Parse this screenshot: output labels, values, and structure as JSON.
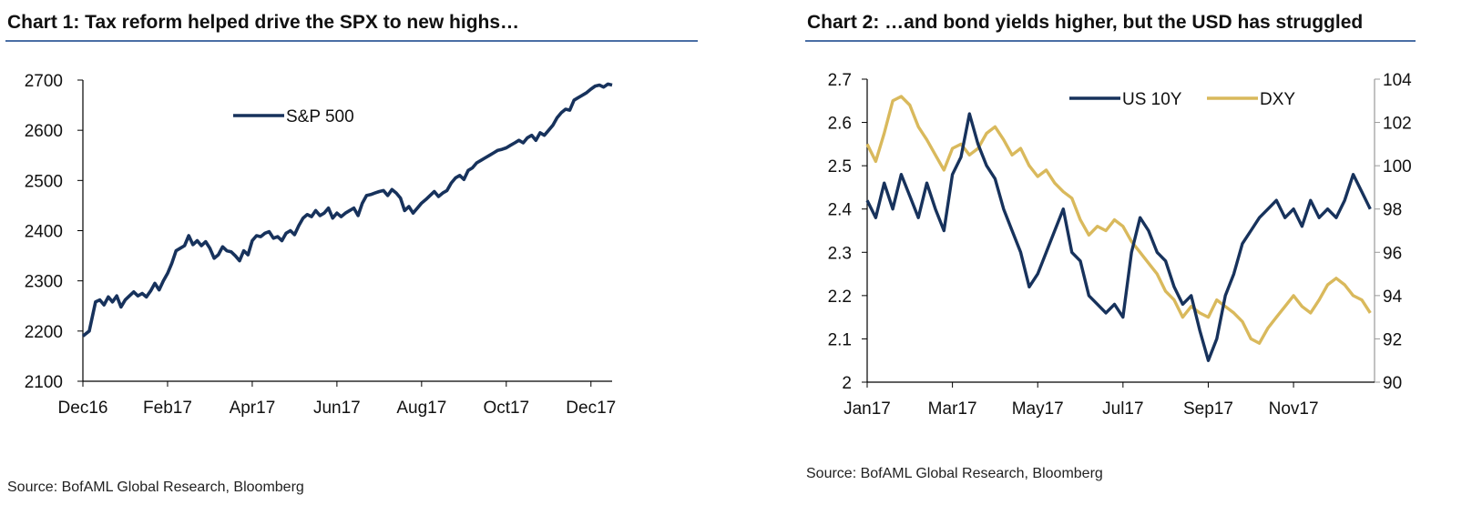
{
  "colors": {
    "navy": "#17325c",
    "gold": "#d9b95c",
    "rule": "#4a6fa5"
  },
  "charts": [
    {
      "title": "Chart 1: Tax reform helped drive the SPX to new highs…",
      "source": "Source: BofAML Global Research, Bloomberg"
    },
    {
      "title": "Chart 2: …and bond yields higher, but the USD has struggled",
      "source": "Source: BofAML Global Research, Bloomberg"
    }
  ],
  "chart_data": [
    {
      "type": "line",
      "title": "Chart 1: Tax reform helped drive the SPX to new highs…",
      "x_ticks": [
        "Dec16",
        "Feb17",
        "Apr17",
        "Jun17",
        "Aug17",
        "Oct17",
        "Dec17"
      ],
      "x_range": [
        0,
        12.5
      ],
      "ylim": [
        2100,
        2700
      ],
      "y_ticks": [
        2100,
        2200,
        2300,
        2400,
        2500,
        2600,
        2700
      ],
      "legend_position": "top-left",
      "series": [
        {
          "name": "S&P 500",
          "color": "#17325c",
          "x": [
            0,
            0.15,
            0.3,
            0.4,
            0.5,
            0.6,
            0.7,
            0.8,
            0.9,
            1.0,
            1.1,
            1.2,
            1.3,
            1.4,
            1.5,
            1.6,
            1.7,
            1.8,
            1.9,
            2.0,
            2.1,
            2.2,
            2.3,
            2.4,
            2.5,
            2.6,
            2.7,
            2.8,
            2.9,
            3.0,
            3.1,
            3.2,
            3.3,
            3.4,
            3.5,
            3.6,
            3.7,
            3.8,
            3.9,
            4.0,
            4.1,
            4.2,
            4.3,
            4.4,
            4.5,
            4.6,
            4.7,
            4.8,
            4.9,
            5.0,
            5.1,
            5.2,
            5.3,
            5.4,
            5.5,
            5.6,
            5.7,
            5.8,
            5.9,
            6.0,
            6.1,
            6.2,
            6.3,
            6.4,
            6.5,
            6.6,
            6.7,
            6.8,
            6.9,
            7.0,
            7.1,
            7.2,
            7.3,
            7.4,
            7.5,
            7.6,
            7.7,
            7.8,
            7.9,
            8.0,
            8.1,
            8.2,
            8.3,
            8.4,
            8.5,
            8.6,
            8.7,
            8.8,
            8.9,
            9.0,
            9.1,
            9.2,
            9.3,
            9.4,
            9.5,
            9.6,
            9.7,
            9.8,
            9.9,
            10.0,
            10.1,
            10.2,
            10.3,
            10.4,
            10.5,
            10.6,
            10.7,
            10.8,
            10.9,
            11.0,
            11.1,
            11.2,
            11.3,
            11.4,
            11.5,
            11.6,
            11.7,
            11.8,
            11.9,
            12.0,
            12.1,
            12.2,
            12.3,
            12.4,
            12.5
          ],
          "values": [
            2190,
            2200,
            2258,
            2262,
            2252,
            2268,
            2258,
            2270,
            2248,
            2262,
            2270,
            2278,
            2270,
            2275,
            2268,
            2280,
            2295,
            2282,
            2300,
            2315,
            2335,
            2360,
            2365,
            2370,
            2390,
            2372,
            2380,
            2370,
            2378,
            2365,
            2345,
            2352,
            2368,
            2360,
            2358,
            2350,
            2340,
            2360,
            2352,
            2380,
            2390,
            2388,
            2395,
            2398,
            2385,
            2388,
            2380,
            2395,
            2400,
            2392,
            2410,
            2425,
            2432,
            2428,
            2440,
            2430,
            2435,
            2445,
            2425,
            2435,
            2428,
            2435,
            2440,
            2445,
            2430,
            2455,
            2470,
            2472,
            2475,
            2478,
            2480,
            2470,
            2482,
            2475,
            2465,
            2440,
            2448,
            2435,
            2445,
            2455,
            2462,
            2470,
            2478,
            2468,
            2475,
            2480,
            2495,
            2505,
            2510,
            2502,
            2520,
            2525,
            2535,
            2540,
            2545,
            2550,
            2555,
            2560,
            2562,
            2565,
            2570,
            2575,
            2580,
            2575,
            2585,
            2590,
            2580,
            2595,
            2590,
            2600,
            2610,
            2625,
            2635,
            2642,
            2640,
            2660,
            2665,
            2670,
            2675,
            2682,
            2688,
            2690,
            2686,
            2692,
            2690
          ]
        }
      ]
    },
    {
      "type": "line",
      "title": "Chart 2: …and bond yields higher, but the USD has struggled",
      "x_ticks": [
        "Jan17",
        "Mar17",
        "May17",
        "Jul17",
        "Sep17",
        "Nov17"
      ],
      "x_range": [
        0,
        11.9
      ],
      "ylim_left": [
        2.0,
        2.7
      ],
      "y_ticks_left": [
        2,
        2.1,
        2.2,
        2.3,
        2.4,
        2.5,
        2.6,
        2.7
      ],
      "ylim_right": [
        90,
        104
      ],
      "y_ticks_right": [
        90,
        92,
        94,
        96,
        98,
        100,
        102,
        104
      ],
      "legend_position": "top-right",
      "series": [
        {
          "name": "US 10Y",
          "axis": "left",
          "color": "#17325c",
          "x": [
            0,
            0.2,
            0.4,
            0.6,
            0.8,
            1.0,
            1.2,
            1.4,
            1.6,
            1.8,
            2.0,
            2.2,
            2.4,
            2.6,
            2.8,
            3.0,
            3.2,
            3.4,
            3.6,
            3.8,
            4.0,
            4.2,
            4.4,
            4.6,
            4.8,
            5.0,
            5.2,
            5.4,
            5.6,
            5.8,
            6.0,
            6.2,
            6.4,
            6.6,
            6.8,
            7.0,
            7.2,
            7.4,
            7.6,
            7.8,
            8.0,
            8.2,
            8.4,
            8.6,
            8.8,
            9.0,
            9.2,
            9.4,
            9.6,
            9.8,
            10.0,
            10.2,
            10.4,
            10.6,
            10.8,
            11.0,
            11.2,
            11.4,
            11.6,
            11.8
          ],
          "values": [
            2.42,
            2.38,
            2.46,
            2.4,
            2.48,
            2.43,
            2.38,
            2.46,
            2.4,
            2.35,
            2.48,
            2.52,
            2.62,
            2.55,
            2.5,
            2.47,
            2.4,
            2.35,
            2.3,
            2.22,
            2.25,
            2.3,
            2.35,
            2.4,
            2.3,
            2.28,
            2.2,
            2.18,
            2.16,
            2.18,
            2.15,
            2.3,
            2.38,
            2.35,
            2.3,
            2.28,
            2.22,
            2.18,
            2.2,
            2.12,
            2.05,
            2.1,
            2.2,
            2.25,
            2.32,
            2.35,
            2.38,
            2.4,
            2.42,
            2.38,
            2.4,
            2.36,
            2.42,
            2.38,
            2.4,
            2.38,
            2.42,
            2.48,
            2.44,
            2.4
          ]
        },
        {
          "name": "DXY",
          "axis": "right",
          "color": "#d9b95c",
          "x": [
            0,
            0.2,
            0.4,
            0.6,
            0.8,
            1.0,
            1.2,
            1.4,
            1.6,
            1.8,
            2.0,
            2.2,
            2.4,
            2.6,
            2.8,
            3.0,
            3.2,
            3.4,
            3.6,
            3.8,
            4.0,
            4.2,
            4.4,
            4.6,
            4.8,
            5.0,
            5.2,
            5.4,
            5.6,
            5.8,
            6.0,
            6.2,
            6.4,
            6.6,
            6.8,
            7.0,
            7.2,
            7.4,
            7.6,
            7.8,
            8.0,
            8.2,
            8.4,
            8.6,
            8.8,
            9.0,
            9.2,
            9.4,
            9.6,
            9.8,
            10.0,
            10.2,
            10.4,
            10.6,
            10.8,
            11.0,
            11.2,
            11.4,
            11.6,
            11.8
          ],
          "values": [
            101.0,
            100.2,
            101.5,
            103.0,
            103.2,
            102.8,
            101.8,
            101.2,
            100.5,
            99.8,
            100.8,
            101.0,
            100.5,
            100.8,
            101.5,
            101.8,
            101.2,
            100.5,
            100.8,
            100.0,
            99.5,
            99.8,
            99.2,
            98.8,
            98.5,
            97.5,
            96.8,
            97.2,
            97.0,
            97.5,
            97.2,
            96.5,
            96.0,
            95.5,
            95.0,
            94.2,
            93.8,
            93.0,
            93.5,
            93.2,
            93.0,
            93.8,
            93.5,
            93.2,
            92.8,
            92.0,
            91.8,
            92.5,
            93.0,
            93.5,
            94.0,
            93.5,
            93.2,
            93.8,
            94.5,
            94.8,
            94.5,
            94.0,
            93.8,
            93.2
          ]
        }
      ]
    }
  ]
}
